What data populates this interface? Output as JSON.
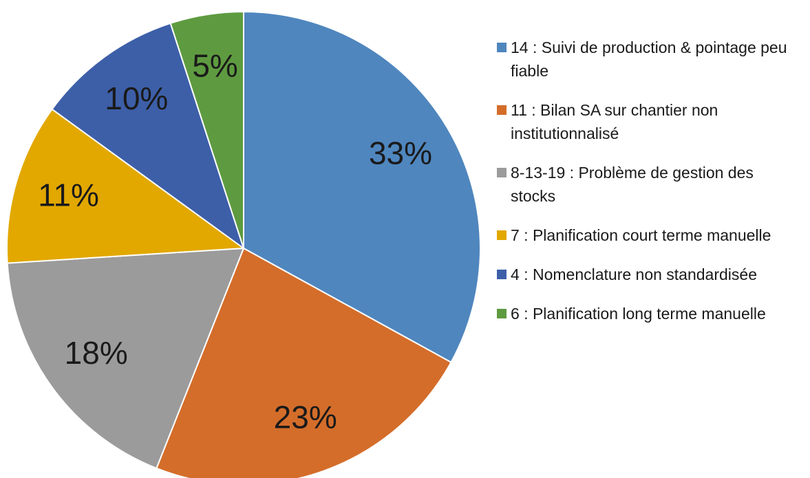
{
  "chart_data": {
    "type": "pie",
    "categories": [
      "14 : Suivi de production & pointage peu fiable",
      "11 : Bilan SA sur chantier non institutionnalisé",
      "8-13-19 : Problème de gestion des stocks",
      "7 : Planification court terme manuelle",
      "4 : Nomenclature non standardisée",
      "6 : Planification long terme manuelle"
    ],
    "values": [
      33,
      23,
      18,
      11,
      10,
      5
    ],
    "value_labels": [
      "33%",
      "23%",
      "18%",
      "11%",
      "10%",
      "5%"
    ],
    "colors": [
      "#4f86be",
      "#d46d2a",
      "#9b9b9b",
      "#e2a800",
      "#3d5fa8",
      "#5e9b40"
    ],
    "legend": "right"
  }
}
